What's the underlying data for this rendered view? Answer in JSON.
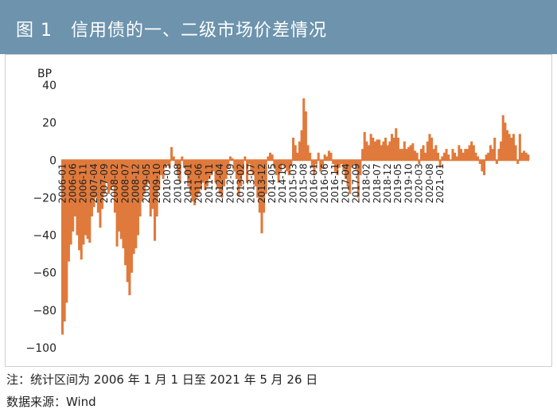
{
  "header": {
    "figure_label": "图 1",
    "title": "信用债的一、二级市场价差情况"
  },
  "colors": {
    "header_bg": "#6d93ad",
    "bar": "#e07a3c",
    "title_text": "#ffffff"
  },
  "footer": {
    "note": "注：统计区间为 2006 年 1 月 1 日至 2021 年 5 月 26 日",
    "source": "数据来源：Wind"
  },
  "chart_data": {
    "type": "bar",
    "unit_label": "BP",
    "ylim": [
      -100,
      40
    ],
    "yticks": [
      40,
      20,
      0,
      -20,
      -40,
      -60,
      -80,
      -100
    ],
    "yticklabels": [
      "40",
      "20",
      "0",
      "−20",
      "−40",
      "−60",
      "−80",
      "−100"
    ],
    "xticklabels": [
      "2006-01",
      "2006-06",
      "2006-11",
      "2007-04",
      "2007-09",
      "2008-02",
      "2008-07",
      "2008-12",
      "2009-05",
      "2009-10",
      "2010-03",
      "2010-08",
      "2011-01",
      "2011-06",
      "2011-11",
      "2012-04",
      "2012-09",
      "2013-02",
      "2013-07",
      "2013-12",
      "2014-05",
      "2014-10",
      "2015-03",
      "2015-08",
      "2016-01",
      "2016-06",
      "2016-11",
      "2017-04",
      "2017-09",
      "2018-02",
      "2018-07",
      "2018-12",
      "2019-05",
      "2019-10",
      "2020-03",
      "2020-08",
      "2021-01"
    ],
    "start_month": "2006-01",
    "grid": false,
    "values": [
      -93,
      -86,
      -76,
      -54,
      -45,
      -38,
      -30,
      -40,
      -48,
      -53,
      -45,
      -40,
      -42,
      -44,
      -30,
      -25,
      -20,
      -28,
      -36,
      -26,
      -18,
      -12,
      -18,
      -16,
      -14,
      -28,
      -46,
      -38,
      -42,
      -47,
      -56,
      -65,
      -72,
      -60,
      -50,
      -47,
      -40,
      -30,
      -22,
      -18,
      -14,
      -12,
      -30,
      -26,
      -43,
      -30,
      -16,
      -8,
      -10,
      -4,
      -2,
      -4,
      7,
      2,
      -3,
      -8,
      -12,
      2,
      -4,
      -8,
      -14,
      -18,
      -22,
      -24,
      -20,
      -18,
      -15,
      -12,
      -16,
      -14,
      -10,
      -8,
      -6,
      -12,
      -15,
      -18,
      -20,
      -14,
      -10,
      -4,
      2,
      1,
      -6,
      -10,
      -19,
      -14,
      -8,
      2,
      -12,
      -2,
      -6,
      -8,
      -14,
      -20,
      -28,
      -39,
      -28,
      -18,
      2,
      4,
      3,
      -4,
      -8,
      -12,
      -6,
      -2,
      -4,
      -6,
      -8,
      -3,
      12,
      8,
      4,
      10,
      16,
      33,
      26,
      8,
      4,
      -4,
      -8,
      -2,
      4,
      -6,
      -4,
      3,
      2,
      5,
      4,
      -2,
      -6,
      -8,
      -4,
      -2,
      -6,
      -10,
      -14,
      -18,
      -4,
      -2,
      -5,
      -20,
      -8,
      6,
      15,
      10,
      8,
      14,
      12,
      10,
      11,
      11,
      8,
      10,
      12,
      8,
      10,
      14,
      12,
      17,
      12,
      6,
      6,
      10,
      6,
      7,
      8,
      9,
      5,
      4,
      -2,
      6,
      8,
      4,
      10,
      14,
      12,
      6,
      8,
      4,
      -4,
      2,
      4,
      6,
      3,
      0,
      6,
      4,
      2,
      8,
      6,
      4,
      6,
      6,
      8,
      10,
      8,
      4,
      2,
      -2,
      -6,
      -8,
      3,
      4,
      8,
      6,
      12,
      -2,
      6,
      10,
      24,
      20,
      16,
      14,
      12,
      14,
      8,
      -2,
      14,
      4,
      5,
      4,
      3
    ]
  }
}
